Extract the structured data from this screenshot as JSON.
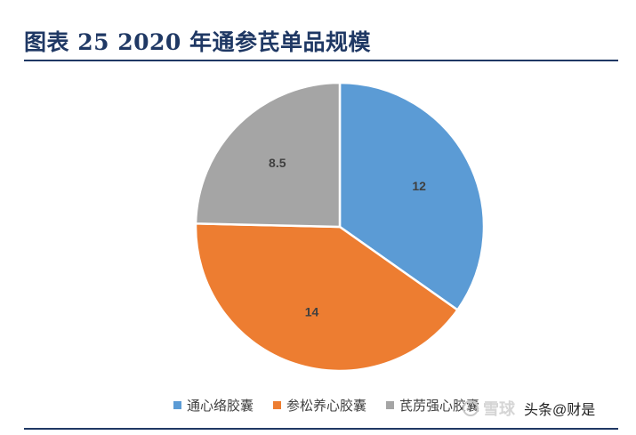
{
  "figure": {
    "title": "图表 25   2020 年通参芪单品规模"
  },
  "chart_data": {
    "type": "pie",
    "title": "",
    "categories": [
      "通心络胶囊",
      "参松养心胶囊",
      "芪苈强心胶囊"
    ],
    "values": [
      12,
      14,
      8.5
    ],
    "value_labels": [
      "12",
      "14",
      "8.5"
    ],
    "colors": [
      "#5b9bd5",
      "#ed7d31",
      "#a5a5a5"
    ],
    "start_angle": "12 o'clock",
    "direction": "clockwise",
    "legend_position": "bottom"
  },
  "watermark": {
    "site": "雪球",
    "text": "头条@财是"
  }
}
